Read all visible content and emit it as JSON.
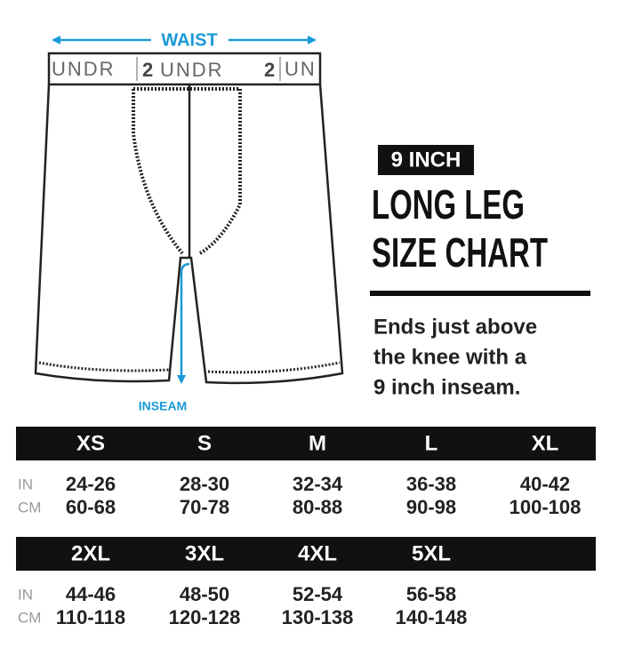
{
  "diagram": {
    "waist_label": "WAIST",
    "inseam_label": "INSEAM",
    "band_text": [
      "UNDR",
      "2",
      "UNDR",
      "2",
      "UN"
    ]
  },
  "header": {
    "badge": "9 INCH",
    "title": [
      "LONG LEG",
      "SIZE CHART"
    ],
    "description": [
      "Ends just above",
      "the knee with a",
      "9 inch inseam."
    ]
  },
  "tables": [
    {
      "units": [
        "IN",
        "CM"
      ],
      "sizes": [
        "XS",
        "S",
        "M",
        "L",
        "XL"
      ],
      "rows": [
        [
          "24-26",
          "28-30",
          "32-34",
          "36-38",
          "40-42"
        ],
        [
          "60-68",
          "70-78",
          "80-88",
          "90-98",
          "100-108"
        ]
      ]
    },
    {
      "units": [
        "IN",
        "CM"
      ],
      "sizes": [
        "2XL",
        "3XL",
        "4XL",
        "5XL"
      ],
      "rows": [
        [
          "44-46",
          "48-50",
          "52-54",
          "56-58"
        ],
        [
          "110-118",
          "120-128",
          "130-138",
          "140-148"
        ]
      ]
    }
  ]
}
